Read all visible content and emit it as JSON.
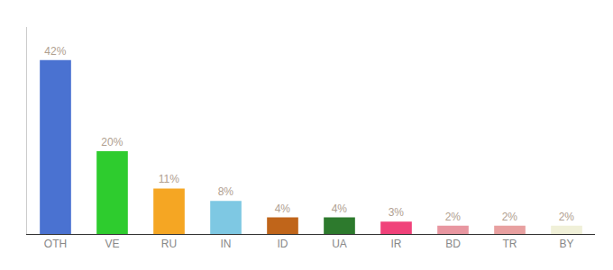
{
  "chart_data": {
    "type": "bar",
    "categories": [
      "OTH",
      "VE",
      "RU",
      "IN",
      "ID",
      "UA",
      "IR",
      "BD",
      "TR",
      "BY"
    ],
    "values": [
      42,
      20,
      11,
      8,
      4,
      4,
      3,
      2,
      2,
      2
    ],
    "value_labels": [
      "42%",
      "20%",
      "11%",
      "8%",
      "4%",
      "4%",
      "3%",
      "2%",
      "2%",
      "2%"
    ],
    "colors": [
      "#4a72d1",
      "#2ecc2e",
      "#f5a623",
      "#7ec8e3",
      "#c0651a",
      "#2d7a2d",
      "#f0427a",
      "#e896a0",
      "#e8a0a0",
      "#f0f0d8"
    ],
    "ylim": [
      0,
      50
    ],
    "data_labels": true,
    "tick_labels": "x",
    "grid": false
  }
}
